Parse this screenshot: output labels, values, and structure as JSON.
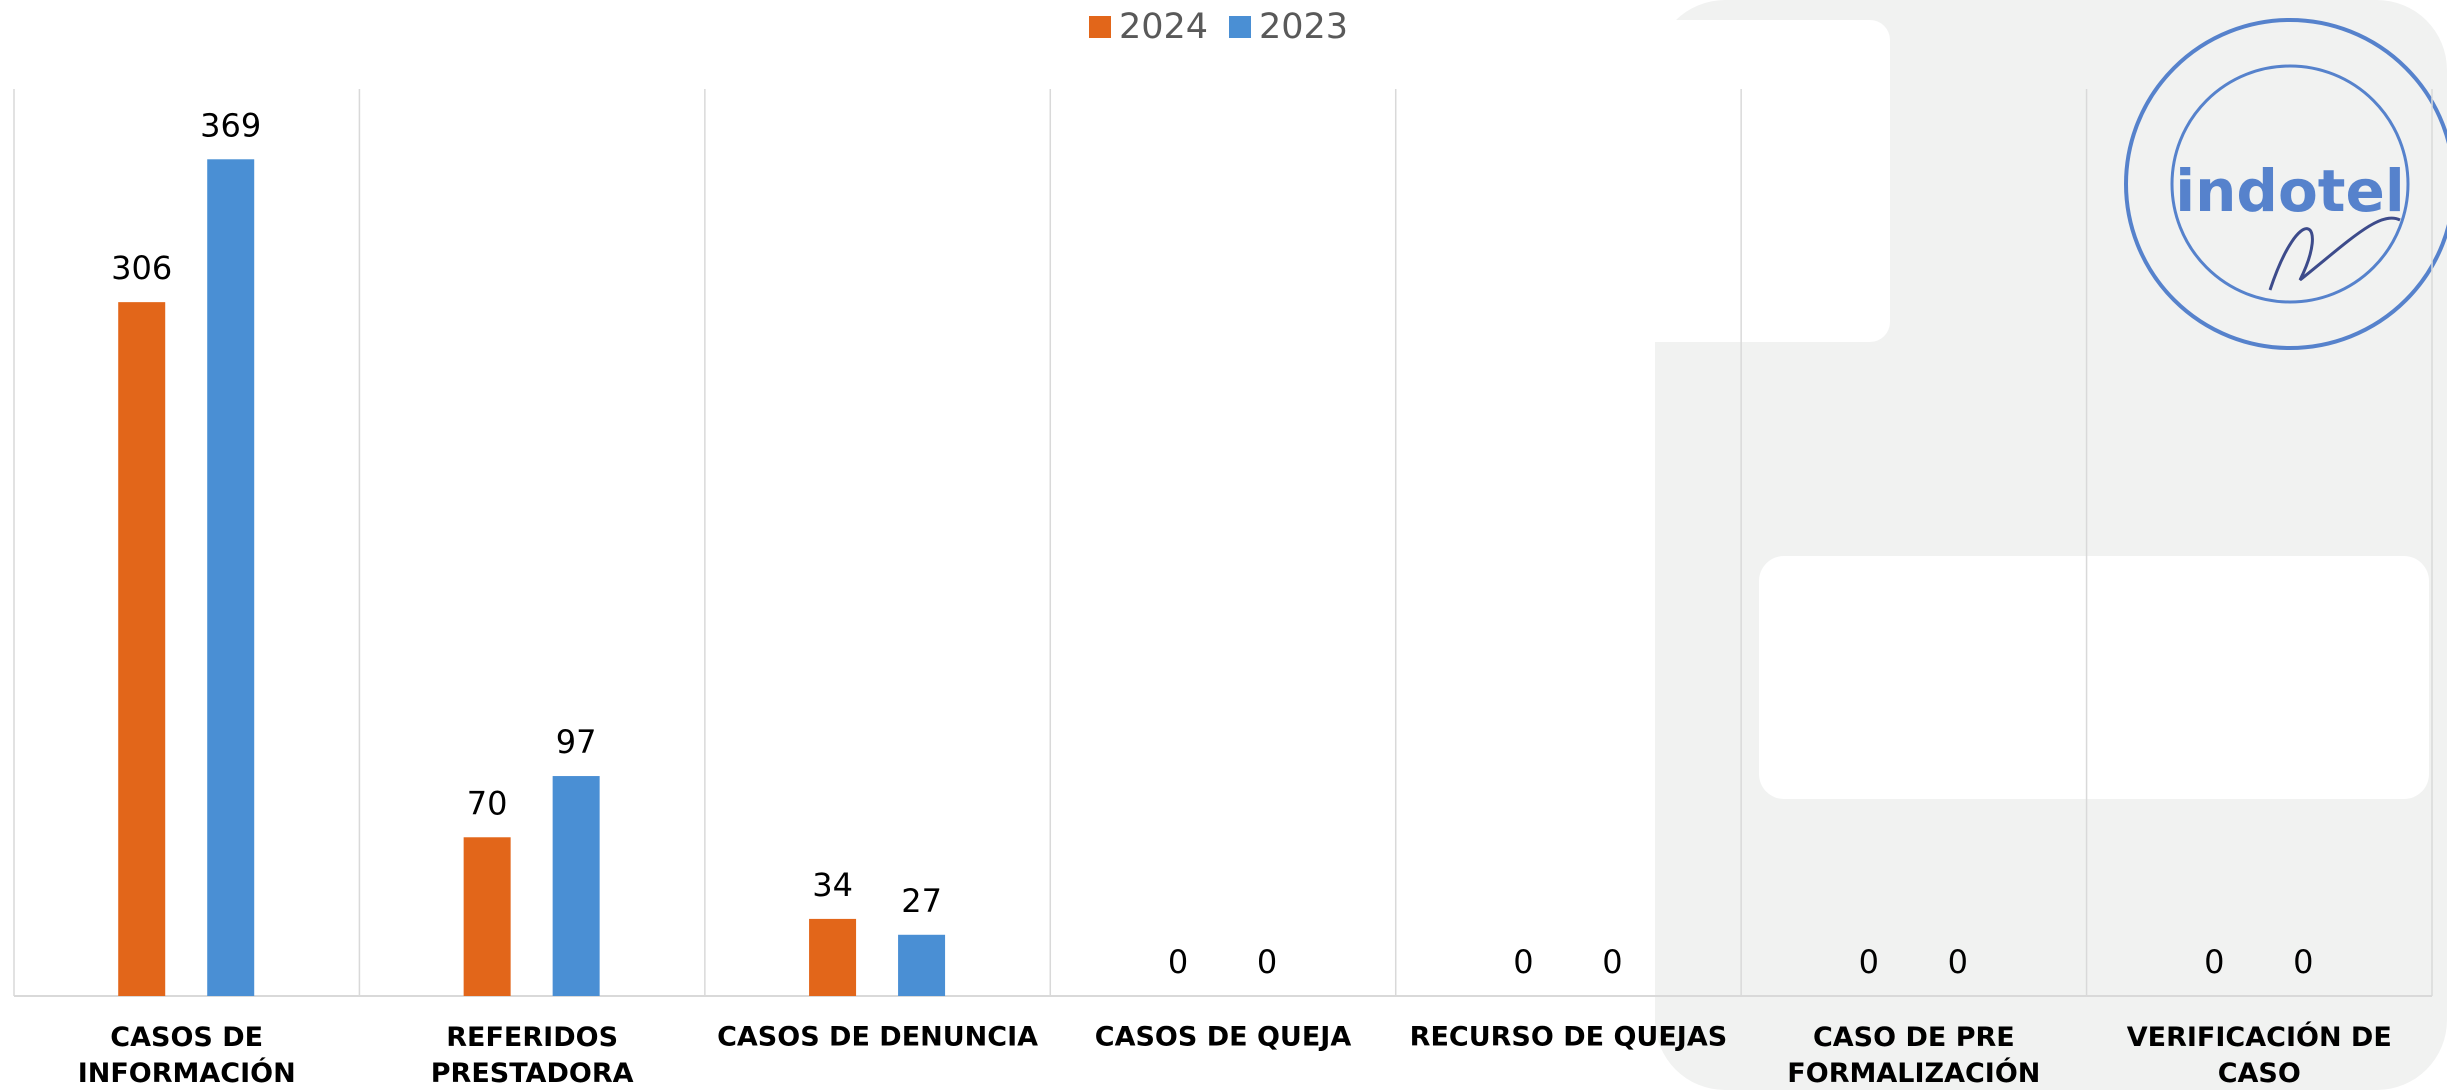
{
  "chart_data": {
    "type": "bar",
    "categories": [
      "CASOS DE INFORMACIÓN",
      "REFERIDOS PRESTADORA",
      "CASOS DE DENUNCIA",
      "CASOS DE QUEJA",
      "RECURSO DE QUEJAS",
      "CASO DE PRE FORMALIZACIÓN",
      "VERIFICACIÓN DE CASO"
    ],
    "series": [
      {
        "name": "2024",
        "color": "#e2661a",
        "values": [
          306,
          70,
          34,
          0,
          0,
          0,
          0
        ]
      },
      {
        "name": "2023",
        "color": "#4a8fd4",
        "values": [
          369,
          97,
          27,
          0,
          0,
          0,
          0
        ]
      }
    ],
    "ylim": [
      0,
      400
    ],
    "legend": "top"
  },
  "stamp": {
    "text": "indotel"
  }
}
